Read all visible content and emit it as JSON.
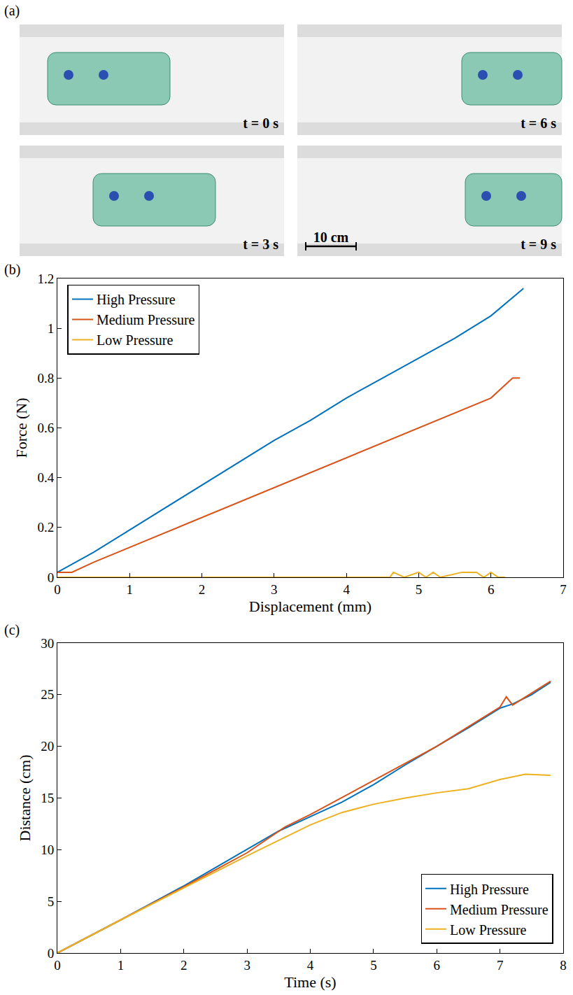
{
  "panel_a": {
    "label": "(a)",
    "frames": [
      "t = 0 s",
      "t = 6 s",
      "t = 3 s",
      "t = 9 s"
    ],
    "scale_bar": "10 cm"
  },
  "chart_data": [
    {
      "type": "line",
      "label": "(b)",
      "x_label": "Displacement (mm)",
      "y_label": "Force (N)",
      "xlim": [
        0,
        7
      ],
      "xticks": [
        0,
        1,
        2,
        3,
        4,
        5,
        6,
        7
      ],
      "ylim": [
        0,
        1.2
      ],
      "yticks": [
        0,
        0.2,
        0.4,
        0.6,
        0.8,
        1,
        1.2
      ],
      "grid": false,
      "legend": "top left",
      "series": [
        {
          "name": "High Pressure",
          "color": "#0072BD",
          "x": [
            0,
            0.5,
            1,
            1.5,
            2,
            2.5,
            3,
            3.5,
            4,
            4.5,
            5,
            5.5,
            6,
            6.45
          ],
          "values": [
            0.02,
            0.1,
            0.19,
            0.28,
            0.37,
            0.46,
            0.55,
            0.63,
            0.72,
            0.8,
            0.88,
            0.96,
            1.05,
            1.16
          ]
        },
        {
          "name": "Medium Pressure",
          "color": "#D95319",
          "x": [
            0,
            0.2,
            0.5,
            1,
            1.5,
            2,
            2.5,
            3,
            3.5,
            4,
            4.5,
            5,
            5.5,
            6,
            6.3,
            6.4
          ],
          "values": [
            0.02,
            0.02,
            0.06,
            0.12,
            0.18,
            0.24,
            0.3,
            0.36,
            0.42,
            0.48,
            0.54,
            0.6,
            0.66,
            0.72,
            0.8,
            0.8
          ]
        },
        {
          "name": "Low Pressure",
          "color": "#EDB120",
          "x": [
            0,
            4.6,
            4.65,
            4.8,
            5,
            5.1,
            5.2,
            5.3,
            5.6,
            5.8,
            5.9,
            6,
            6.1,
            6.2
          ],
          "values": [
            0,
            0,
            0.02,
            0,
            0.02,
            0,
            0.02,
            0,
            0.02,
            0.02,
            0,
            0.02,
            0,
            0
          ]
        }
      ]
    },
    {
      "type": "line",
      "label": "(c)",
      "x_label": "Time (s)",
      "y_label": "Distance (cm)",
      "xlim": [
        0,
        8
      ],
      "xticks": [
        0,
        1,
        2,
        3,
        4,
        5,
        6,
        7,
        8
      ],
      "ylim": [
        0,
        30
      ],
      "yticks": [
        0,
        5,
        10,
        15,
        20,
        25,
        30
      ],
      "grid": false,
      "legend": "bottom right",
      "series": [
        {
          "name": "High Pressure",
          "color": "#0072BD",
          "x": [
            0,
            1,
            2,
            3,
            3.5,
            4,
            4.5,
            5,
            5.5,
            6,
            6.5,
            7,
            7.2,
            7.5,
            7.8
          ],
          "values": [
            0,
            3.2,
            6.5,
            10,
            11.8,
            13.2,
            14.6,
            16.3,
            18.2,
            20,
            21.8,
            23.7,
            24.1,
            25,
            26.2
          ]
        },
        {
          "name": "Medium Pressure",
          "color": "#D95319",
          "x": [
            0,
            1,
            2,
            3,
            3.6,
            4,
            5,
            6,
            7,
            7.1,
            7.2,
            7.8
          ],
          "values": [
            0,
            3.2,
            6.4,
            9.7,
            12.2,
            13.4,
            16.7,
            20,
            23.8,
            24.8,
            24,
            26.3
          ]
        },
        {
          "name": "Low Pressure",
          "color": "#EDB120",
          "x": [
            0,
            1,
            2,
            3,
            4,
            4.5,
            5,
            5.5,
            6,
            6.5,
            7,
            7.4,
            7.8
          ],
          "values": [
            0,
            3.2,
            6.3,
            9.4,
            12.4,
            13.6,
            14.4,
            15,
            15.5,
            15.9,
            16.8,
            17.3,
            17.2
          ]
        }
      ]
    }
  ]
}
